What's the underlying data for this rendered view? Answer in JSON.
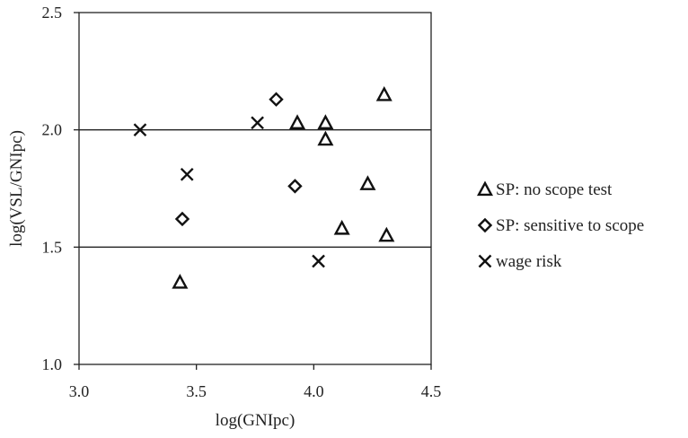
{
  "chart_data": {
    "type": "scatter",
    "xlabel": "log(GNIpc)",
    "ylabel": "log(VSL/GNIpc)",
    "xlim": [
      3.0,
      4.5
    ],
    "ylim": [
      1.0,
      2.5
    ],
    "xticks": [
      "3.0",
      "3.5",
      "4.0",
      "4.5"
    ],
    "yticks": [
      "1.0",
      "1.5",
      "2.0",
      "2.5"
    ],
    "reference_lines_y": [
      1.5,
      2.0
    ],
    "legend_position": "right",
    "series": [
      {
        "name": "SP: no scope test",
        "marker": "triangle",
        "points": [
          {
            "x": 3.43,
            "y": 1.35
          },
          {
            "x": 3.93,
            "y": 2.03
          },
          {
            "x": 4.05,
            "y": 2.03
          },
          {
            "x": 4.05,
            "y": 1.96
          },
          {
            "x": 4.12,
            "y": 1.58
          },
          {
            "x": 4.23,
            "y": 1.77
          },
          {
            "x": 4.3,
            "y": 2.15
          },
          {
            "x": 4.31,
            "y": 1.55
          }
        ]
      },
      {
        "name": "SP: sensitive to scope",
        "marker": "diamond",
        "points": [
          {
            "x": 3.44,
            "y": 1.62
          },
          {
            "x": 3.84,
            "y": 2.13
          },
          {
            "x": 3.92,
            "y": 1.76
          }
        ]
      },
      {
        "name": "wage risk",
        "marker": "cross",
        "points": [
          {
            "x": 3.26,
            "y": 2.0
          },
          {
            "x": 3.46,
            "y": 1.81
          },
          {
            "x": 3.76,
            "y": 2.03
          },
          {
            "x": 4.02,
            "y": 1.44
          }
        ]
      }
    ]
  }
}
